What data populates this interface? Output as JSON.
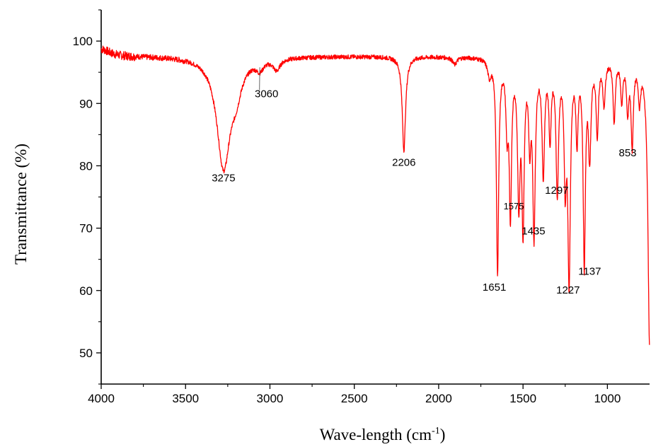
{
  "chart_data": {
    "type": "line",
    "title": "",
    "xlabel": "Wave-length (cm",
    "xlabel_sup": "-1",
    "xlabel_close": ")",
    "ylabel": "Transmittance (%)",
    "xlim": [
      4000,
      750
    ],
    "ylim": [
      45,
      105
    ],
    "x_reversed": true,
    "grid": false,
    "legend": "none",
    "x_ticks": [
      4000,
      3500,
      3000,
      2500,
      2000,
      1500,
      1000
    ],
    "y_ticks": [
      50,
      60,
      70,
      80,
      90,
      100
    ],
    "series": [
      {
        "color": "#ff0000",
        "baseline": 97.6,
        "noise_amp": 0.35,
        "segments": [
          {
            "x_from": 4000,
            "x_to": 3800,
            "noise_amp": 0.7
          },
          {
            "x_from": 3800,
            "x_to": 3500,
            "noise_amp": 0.45
          }
        ],
        "bands": [
          {
            "x": 4000,
            "depth": -1.2,
            "width": 60
          },
          {
            "x": 3275,
            "depth": 17.5,
            "width": 48
          },
          {
            "x": 3200,
            "depth": 4.0,
            "width": 40
          },
          {
            "x": 3060,
            "depth": 1.5,
            "width": 25
          },
          {
            "x": 2960,
            "depth": 1.8,
            "width": 25
          },
          {
            "x": 2206,
            "depth": 15.0,
            "width": 12
          },
          {
            "x": 1905,
            "depth": 1.2,
            "width": 15
          },
          {
            "x": 1700,
            "depth": 2.5,
            "width": 12
          },
          {
            "x": 1651,
            "depth": 34.5,
            "width": 8
          },
          {
            "x": 1595,
            "depth": 10.0,
            "width": 8
          },
          {
            "x": 1575,
            "depth": 24.5,
            "width": 8
          },
          {
            "x": 1525,
            "depth": 22.0,
            "width": 9
          },
          {
            "x": 1500,
            "depth": 26.0,
            "width": 8
          },
          {
            "x": 1460,
            "depth": 12.0,
            "width": 8
          },
          {
            "x": 1435,
            "depth": 27.5,
            "width": 9
          },
          {
            "x": 1380,
            "depth": 18.0,
            "width": 9
          },
          {
            "x": 1340,
            "depth": 12.0,
            "width": 8
          },
          {
            "x": 1297,
            "depth": 21.0,
            "width": 9
          },
          {
            "x": 1250,
            "depth": 18.0,
            "width": 8
          },
          {
            "x": 1227,
            "depth": 35.0,
            "width": 9
          },
          {
            "x": 1180,
            "depth": 12.0,
            "width": 8
          },
          {
            "x": 1137,
            "depth": 32.5,
            "width": 8
          },
          {
            "x": 1105,
            "depth": 15.0,
            "width": 9
          },
          {
            "x": 1060,
            "depth": 12.0,
            "width": 8
          },
          {
            "x": 1020,
            "depth": 7.0,
            "width": 9
          },
          {
            "x": 960,
            "depth": 10.0,
            "width": 8
          },
          {
            "x": 915,
            "depth": 6.5,
            "width": 8
          },
          {
            "x": 880,
            "depth": 8.0,
            "width": 8
          },
          {
            "x": 853,
            "depth": 13.5,
            "width": 8
          },
          {
            "x": 810,
            "depth": 6.0,
            "width": 9
          },
          {
            "x": 750,
            "depth": 46.0,
            "width": 12
          }
        ]
      }
    ],
    "annotations": [
      {
        "text": "3275",
        "x": 3275,
        "y": 77.5
      },
      {
        "text": "3060",
        "x": 3020,
        "y": 91.0,
        "leader_to": {
          "x": 3060,
          "y": 95.8
        }
      },
      {
        "text": "2206",
        "x": 2206,
        "y": 80.0
      },
      {
        "text": "1651",
        "x": 1670,
        "y": 60.0
      },
      {
        "text": "1575",
        "x": 1555,
        "y": 73.0
      },
      {
        "text": "1435",
        "x": 1438,
        "y": 69.0
      },
      {
        "text": "1297",
        "x": 1300,
        "y": 75.5
      },
      {
        "text": "1227",
        "x": 1233,
        "y": 59.5
      },
      {
        "text": "1137",
        "x": 1105,
        "y": 62.5
      },
      {
        "text": "853",
        "x": 880,
        "y": 81.5
      }
    ]
  }
}
